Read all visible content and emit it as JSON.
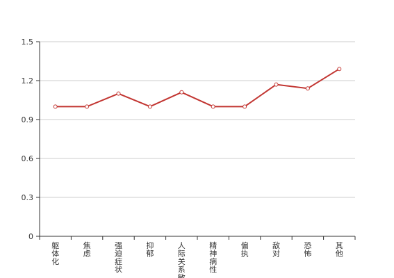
{
  "chart_data": {
    "type": "line",
    "title": "",
    "xlabel": "",
    "ylabel": "",
    "categories": [
      "躯体化",
      "焦虑",
      "强迫症状",
      "抑郁",
      "人际关系敏感",
      "精神病性",
      "偏执",
      "敌对",
      "恐怖",
      "其他"
    ],
    "series": [
      {
        "values": [
          1.0,
          1.0,
          1.1,
          1.0,
          1.11,
          1.0,
          1.0,
          1.17,
          1.14,
          1.29
        ]
      }
    ],
    "ylim": [
      0,
      1.5
    ],
    "yticks": [
      "0",
      "0.3",
      "0.6",
      "0.9",
      "1.2",
      "1.5"
    ],
    "grid": true,
    "legend": "none",
    "colors": {
      "line": "#c23531",
      "point_fill": "#ffffff",
      "grid": "#cccccc",
      "axis": "#333333"
    }
  }
}
